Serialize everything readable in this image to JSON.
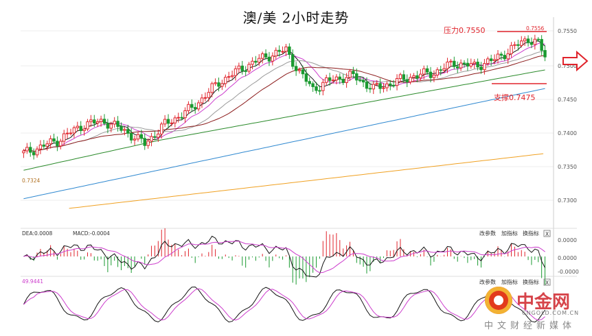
{
  "chart_data": {
    "title": "澳/美 2小时走势",
    "type": "candlestick",
    "price_axis": {
      "ylim": [
        7270,
        7565
      ],
      "ticks": [
        "0.7550",
        "0.7500",
        "0.7450",
        "0.7400",
        "0.7350",
        "0.7300"
      ]
    },
    "annotations": {
      "resistance_label": "压力0.7550",
      "resistance_value": 7550,
      "support_label": "支撑0.7475",
      "support_value": 7475,
      "high_label": "0.7556",
      "low_label": "0.7324"
    },
    "macd_panel": {
      "header_dea": "DEA:0.0008",
      "header_macd": "MACD:-0.0004",
      "ticks": [
        "0.0000",
        "0.0000",
        "-0.0000"
      ]
    },
    "kdj_panel": {
      "header": "49.9441"
    },
    "controls": {
      "change_params": "改参数",
      "add_indicator": "加指标",
      "swap_indicator": "换指标",
      "close": "X"
    },
    "colors": {
      "up": "#e0232b",
      "down": "#1a9a30",
      "ma5": "#111111",
      "ma10": "#cc3bcc",
      "ma20": "#999999",
      "ma30": "#8b1a1a",
      "ma60": "#2a8a2a",
      "ma120": "#2e88d0",
      "ma250": "#f0a020"
    }
  },
  "watermark": {
    "brand": "中金网",
    "domain": "CNGOLD.COM.CN",
    "slogan": "中文财经新媒体"
  }
}
